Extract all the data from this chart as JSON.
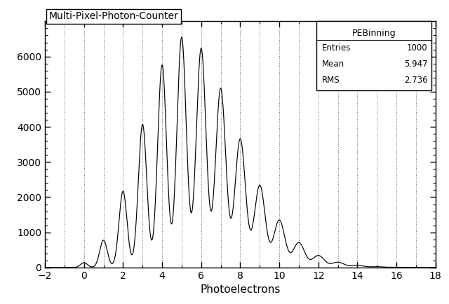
{
  "title": "Multi-Pixel-Photon-Counter",
  "xlabel": "Photoelectrons",
  "xlim": [
    -2,
    18
  ],
  "ylim": [
    0,
    7000
  ],
  "xticks": [
    -2,
    0,
    2,
    4,
    6,
    8,
    10,
    12,
    14,
    16,
    18
  ],
  "yticks": [
    0,
    1000,
    2000,
    3000,
    4000,
    5000,
    6000
  ],
  "vlines": [
    -1,
    0,
    1,
    2,
    3,
    4,
    5,
    6,
    7,
    8,
    9,
    10,
    11,
    12,
    13,
    14,
    15,
    16,
    17
  ],
  "legend_title": "PEBinning",
  "background_color": "#ffffff",
  "line_color": "#000000",
  "poisson_mu": 5.947,
  "sigma0": 0.18,
  "sigma_gain": 0.07,
  "scale_factor": 6550.0,
  "n_points": 8000,
  "entries": "1000",
  "mean": "5.947",
  "rms": "2.736"
}
